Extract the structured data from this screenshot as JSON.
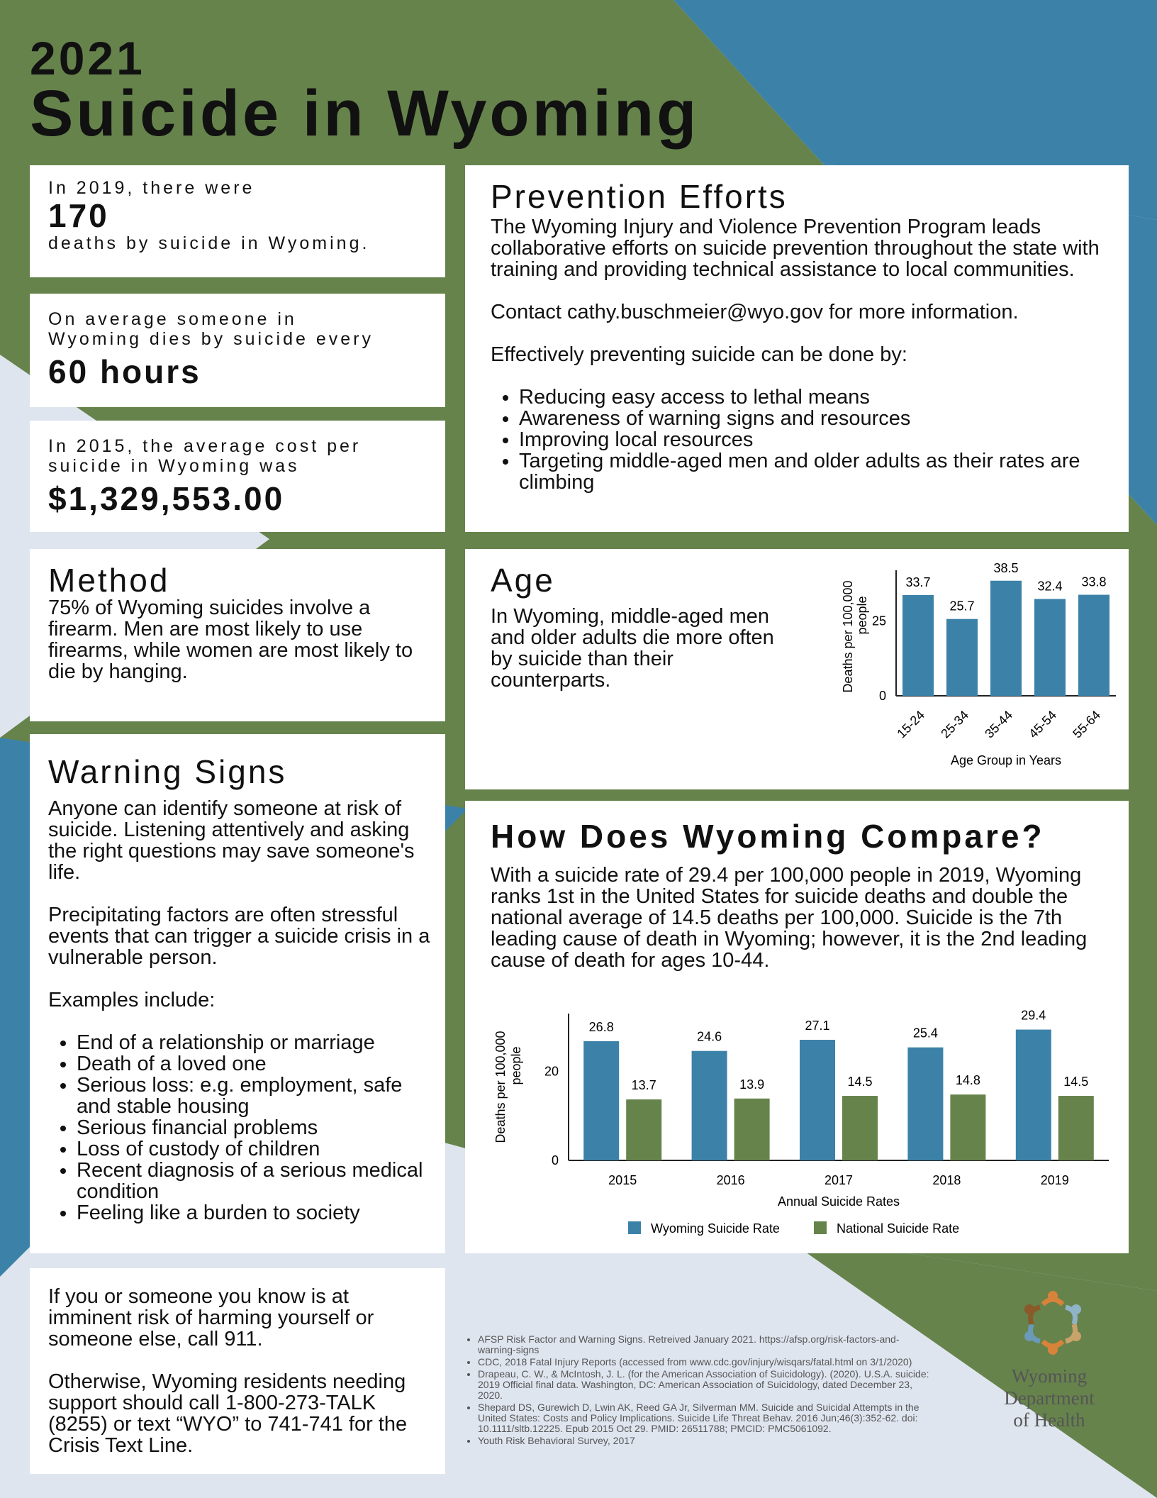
{
  "colors": {
    "green": "#66834c",
    "blue": "#3c82a8",
    "light": "#dfe5ef",
    "text": "#111111"
  },
  "title": {
    "year": "2021",
    "main": "Suicide in Wyoming"
  },
  "stats": {
    "deaths": {
      "pre": "In 2019, there were",
      "value": "170",
      "post": "deaths by suicide in Wyoming."
    },
    "frequency": {
      "pre_line1": "On average someone in",
      "pre_line2": "Wyoming dies by suicide every",
      "value": "60 hours"
    },
    "cost": {
      "pre_line1": "In 2015, the average cost per",
      "pre_line2": "suicide in Wyoming was",
      "value": "$1,329,553.00"
    }
  },
  "prevention": {
    "title": "Prevention Efforts",
    "intro": "The Wyoming Injury and Violence Prevention Program leads collaborative efforts on suicide prevention throughout the state with training and providing technical assistance to local communities.",
    "contact": "Contact cathy.buschmeier@wyo.gov for more information.",
    "lead": "Effectively preventing suicide can be done by:",
    "items": [
      "Reducing easy access to lethal means",
      "Awareness of warning signs and resources",
      "Improving local resources",
      "Targeting middle-aged men and older adults as their rates are climbing"
    ]
  },
  "method": {
    "title": "Method",
    "text": "75% of Wyoming suicides involve a firearm. Men are most likely to use firearms, while women are most likely to die by hanging."
  },
  "age": {
    "title": "Age",
    "text": "In Wyoming,  middle-aged men and older adults die more often by suicide than their counterparts."
  },
  "warning": {
    "title": "Warning Signs",
    "p1": "Anyone can identify someone at risk of suicide. Listening attentively and asking the right questions may save someone's life.",
    "p2": "Precipitating factors are often stressful events that can trigger a suicide crisis in a vulnerable person.",
    "lead": "Examples include:",
    "items": [
      "End of a relationship or marriage",
      "Death of a loved one",
      "Serious loss:  e.g. employment, safe and stable housing",
      "Serious financial problems",
      "Loss of custody of children",
      "Recent diagnosis of a serious medical condition",
      "Feeling like a burden to society"
    ]
  },
  "compare": {
    "title": "How Does Wyoming Compare?",
    "text": "With a suicide rate of 29.4 per 100,000 people in 2019, Wyoming ranks 1st in the United States for suicide deaths and double the national average of 14.5 deaths per 100,000.  Suicide is the 7th leading cause of death in Wyoming; however, it is the 2nd leading cause of death for ages 10-44."
  },
  "crisis": {
    "p1": "If you or someone you know is at imminent risk of harming yourself or someone else, call 911.",
    "p2": "Otherwise, Wyoming residents needing support should call 1-800-273-TALK (8255) or text “WYO” to 741-741 for the Crisis Text Line."
  },
  "references": [
    "AFSP Risk Factor and Warning Signs. Retreived January 2021. https://afsp.org/risk-factors-and-warning-signs",
    "CDC, 2018 Fatal Injury Reports (accessed from www.cdc.gov/injury/wisqars/fatal.html on 3/1/2020)",
    "Drapeau, C. W., & McIntosh, J. L. (for the American Association of Suicidology). (2020). U.S.A. suicide: 2019 Official final data. Washington, DC: American Association of Suicidology, dated December 23, 2020.",
    "Shepard DS, Gurewich D, Lwin AK, Reed GA Jr, Silverman MM. Suicide and Suicidal Attempts in the United States: Costs and Policy Implications. Suicide Life Threat Behav. 2016 Jun;46(3):352-62. doi: 10.1111/sltb.12225. Epub 2015 Oct 29. PMID: 26511788; PMCID: PMC5061092.",
    "Youth Risk Behavioral Survey, 2017"
  ],
  "logo": {
    "line1": "Wyoming",
    "line2": "Department",
    "line3": "of Health"
  },
  "chart_data": [
    {
      "type": "bar",
      "title": "",
      "categories": [
        "15-24",
        "25-34",
        "35-44",
        "45-54",
        "55-64"
      ],
      "values": [
        33.7,
        25.7,
        38.5,
        32.4,
        33.8
      ],
      "data_labels": [
        "33.7",
        "25.7",
        "38.5",
        "32.4",
        "33.8"
      ],
      "xlabel": "Age Group in Years",
      "ylabel_line1": "Deaths per 100,000",
      "ylabel_line2": "people",
      "yticks": [
        "0",
        "25"
      ],
      "ylim": [
        0,
        42
      ],
      "grid": false
    },
    {
      "type": "bar",
      "title": "",
      "categories": [
        "2015",
        "2016",
        "2017",
        "2018",
        "2019"
      ],
      "series": [
        {
          "name": "Wyoming Suicide Rate",
          "values": [
            26.8,
            24.6,
            27.1,
            25.4,
            29.4
          ],
          "labels": [
            "26.8",
            "24.6",
            "27.1",
            "25.4",
            "29.4"
          ]
        },
        {
          "name": "National Suicide Rate",
          "values": [
            13.7,
            13.9,
            14.5,
            14.8,
            14.5
          ],
          "labels": [
            "13.7",
            "13.9",
            "14.5",
            "14.8",
            "14.5"
          ]
        }
      ],
      "xlabel": "Annual Suicide Rates",
      "ylabel_line1": "Deaths per 100,000",
      "ylabel_line2": "people",
      "yticks": [
        "0",
        "20"
      ],
      "ylim": [
        0,
        33
      ],
      "legend": "bottom",
      "grid": false
    }
  ]
}
